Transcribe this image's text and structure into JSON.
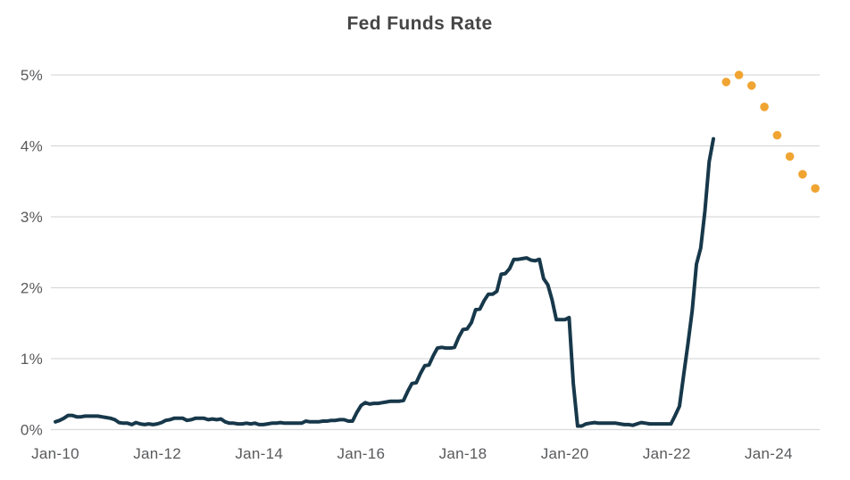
{
  "chart_data": {
    "type": "line",
    "title": "Fed Funds Rate",
    "xlabel": "",
    "ylabel": "",
    "ylim": [
      0,
      5
    ],
    "grid": "horizontal",
    "legend": "none",
    "colors": {
      "history_line": "#17384a",
      "projection_dot": "#f0a431",
      "gridline": "#d9d9d9",
      "axis_text": "#58595b",
      "title_text": "#454545",
      "background": "#ffffff"
    },
    "y_ticks": [
      {
        "value": 0,
        "label": "0%"
      },
      {
        "value": 1,
        "label": "1%"
      },
      {
        "value": 2,
        "label": "2%"
      },
      {
        "value": 3,
        "label": "3%"
      },
      {
        "value": 4,
        "label": "4%"
      },
      {
        "value": 5,
        "label": "5%"
      }
    ],
    "x_ticks": [
      {
        "month_index": 0,
        "label": "Jan-10"
      },
      {
        "month_index": 24,
        "label": "Jan-12"
      },
      {
        "month_index": 48,
        "label": "Jan-14"
      },
      {
        "month_index": 72,
        "label": "Jan-16"
      },
      {
        "month_index": 96,
        "label": "Jan-18"
      },
      {
        "month_index": 120,
        "label": "Jan-20"
      },
      {
        "month_index": 144,
        "label": "Jan-22"
      },
      {
        "month_index": 168,
        "label": "Jan-24"
      }
    ],
    "series": [
      {
        "name": "history",
        "style": "solid-line",
        "color": "#17384a",
        "start_label": "Jan-10",
        "frequency": "monthly",
        "values": [
          0.11,
          0.13,
          0.16,
          0.2,
          0.2,
          0.18,
          0.18,
          0.19,
          0.19,
          0.19,
          0.19,
          0.18,
          0.17,
          0.16,
          0.14,
          0.1,
          0.09,
          0.09,
          0.07,
          0.1,
          0.08,
          0.07,
          0.08,
          0.07,
          0.08,
          0.1,
          0.13,
          0.14,
          0.16,
          0.16,
          0.16,
          0.13,
          0.14,
          0.16,
          0.16,
          0.16,
          0.14,
          0.15,
          0.14,
          0.15,
          0.11,
          0.09,
          0.09,
          0.08,
          0.08,
          0.09,
          0.08,
          0.09,
          0.07,
          0.07,
          0.08,
          0.09,
          0.09,
          0.1,
          0.09,
          0.09,
          0.09,
          0.09,
          0.09,
          0.12,
          0.11,
          0.11,
          0.11,
          0.12,
          0.12,
          0.13,
          0.13,
          0.14,
          0.14,
          0.12,
          0.12,
          0.24,
          0.34,
          0.38,
          0.36,
          0.37,
          0.37,
          0.38,
          0.39,
          0.4,
          0.4,
          0.4,
          0.41,
          0.54,
          0.65,
          0.66,
          0.79,
          0.9,
          0.91,
          1.04,
          1.15,
          1.16,
          1.15,
          1.15,
          1.16,
          1.3,
          1.41,
          1.42,
          1.51,
          1.69,
          1.7,
          1.82,
          1.91,
          1.91,
          1.95,
          2.19,
          2.2,
          2.27,
          2.4,
          2.4,
          2.41,
          2.42,
          2.39,
          2.38,
          2.4,
          2.13,
          2.04,
          1.83,
          1.55,
          1.55,
          1.55,
          1.58,
          0.65,
          0.05,
          0.05,
          0.08,
          0.09,
          0.1,
          0.09,
          0.09,
          0.09,
          0.09,
          0.09,
          0.08,
          0.07,
          0.07,
          0.06,
          0.08,
          0.1,
          0.09,
          0.08,
          0.08,
          0.08,
          0.08,
          0.08,
          0.08,
          0.2,
          0.33,
          0.77,
          1.21,
          1.68,
          2.33,
          2.56,
          3.08,
          3.78,
          4.1
        ]
      },
      {
        "name": "projection",
        "style": "dots",
        "color": "#f0a431",
        "points": [
          {
            "label": "Mar-23",
            "month_index": 158,
            "value": 4.9
          },
          {
            "label": "Jun-23",
            "month_index": 161,
            "value": 5.0
          },
          {
            "label": "Sep-23",
            "month_index": 164,
            "value": 4.85
          },
          {
            "label": "Dec-23",
            "month_index": 167,
            "value": 4.55
          },
          {
            "label": "Mar-24",
            "month_index": 170,
            "value": 4.15
          },
          {
            "label": "Jun-24",
            "month_index": 173,
            "value": 3.85
          },
          {
            "label": "Sep-24",
            "month_index": 176,
            "value": 3.6
          },
          {
            "label": "Dec-24",
            "month_index": 179,
            "value": 3.4
          }
        ]
      }
    ]
  }
}
